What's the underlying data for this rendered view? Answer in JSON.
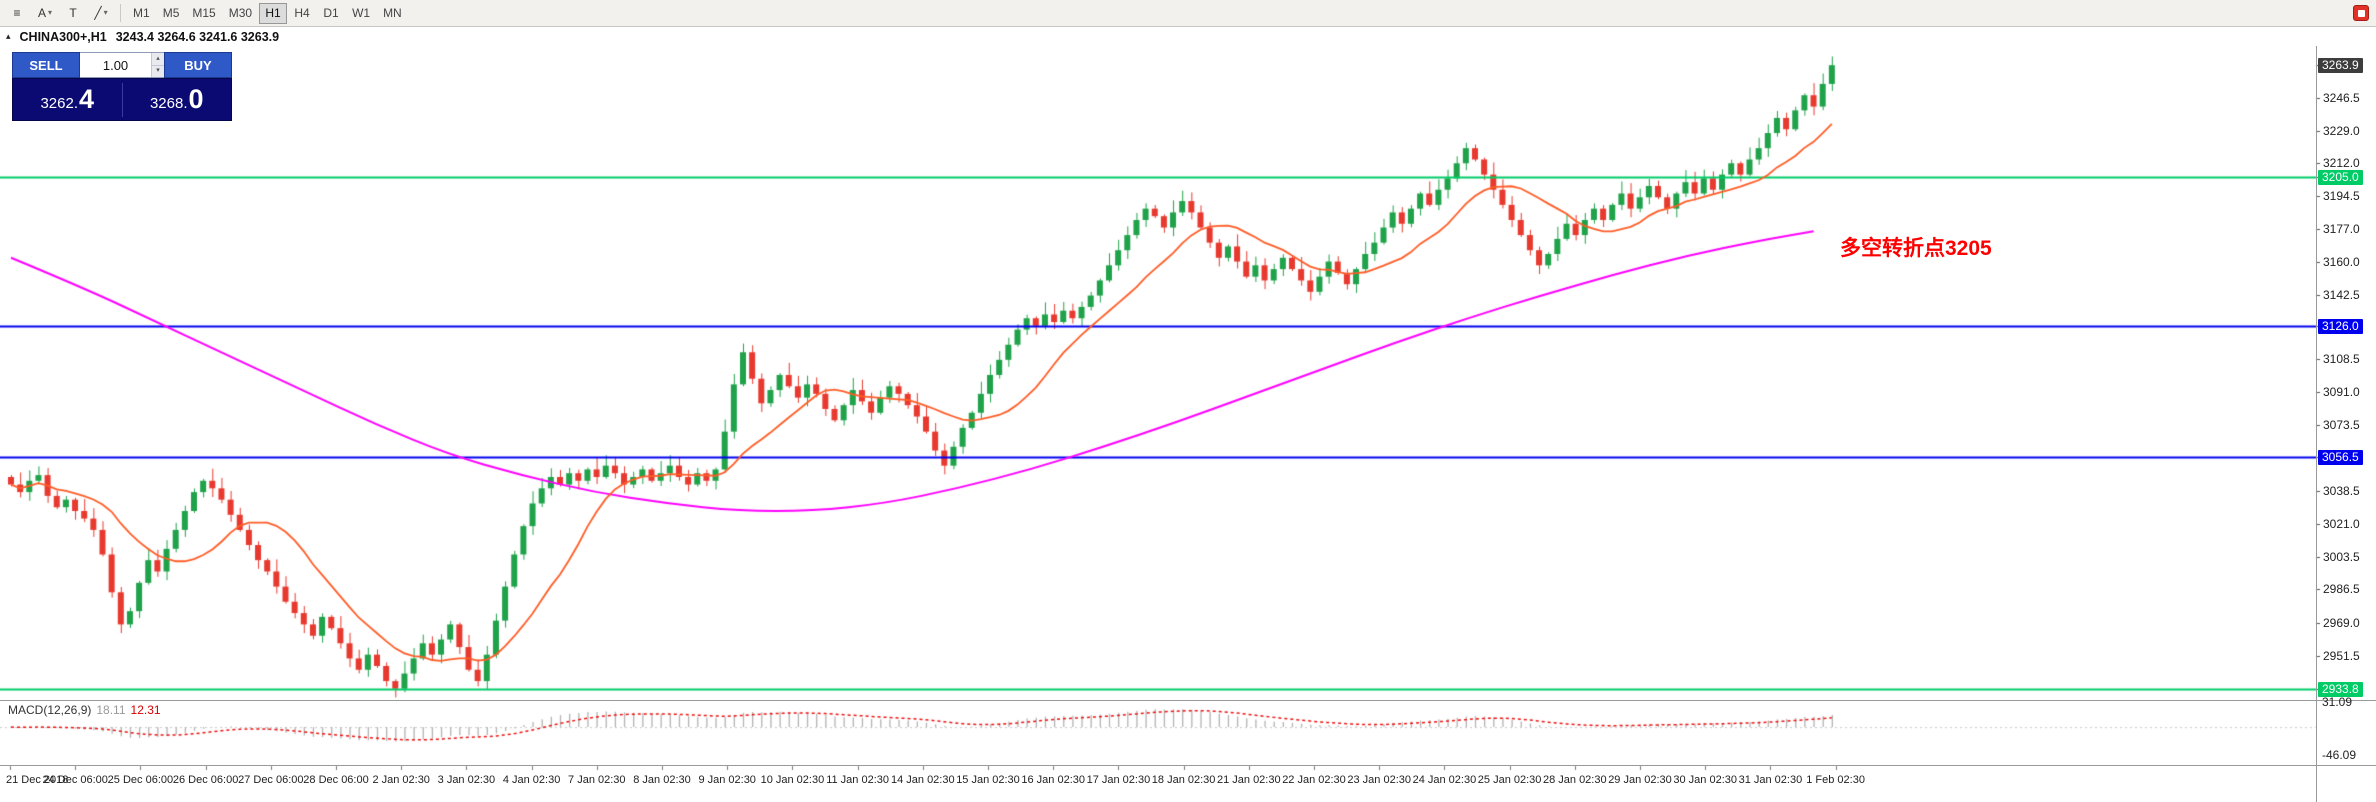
{
  "toolbar": {
    "menu_icon": "≡",
    "cursor_label": "A",
    "text_label": "T",
    "trend_icon": "╱",
    "caret": "▾",
    "timeframes": [
      {
        "label": "M1",
        "active": false
      },
      {
        "label": "M5",
        "active": false
      },
      {
        "label": "M15",
        "active": false
      },
      {
        "label": "M30",
        "active": false
      },
      {
        "label": "H1",
        "active": true
      },
      {
        "label": "H4",
        "active": false
      },
      {
        "label": "D1",
        "active": false
      },
      {
        "label": "W1",
        "active": false
      },
      {
        "label": "MN",
        "active": false
      }
    ]
  },
  "window": {
    "caret_icon": "▴"
  },
  "chart": {
    "title": "CHINA300+,H1",
    "ohlc_text": "3243.4 3264.6 3241.6 3263.9"
  },
  "trade_panel": {
    "sell_label": "SELL",
    "buy_label": "BUY",
    "lot": "1.00",
    "sell_price_small": "3262.",
    "sell_price_big": "4",
    "buy_price_small": "3268.",
    "buy_price_big": "0",
    "spin_up": "▴",
    "spin_down": "▾",
    "panel_color": "#0a0a72",
    "button_color": "#3059c8"
  },
  "annotation": {
    "text": "多空转折点3205",
    "color": "#ff0000"
  },
  "macd": {
    "label": "MACD(12,26,9)",
    "value_main": "18.11",
    "value_signal": "12.31",
    "scale_top": "31.09",
    "scale_bottom": "-46.09"
  },
  "chart_data": {
    "type": "candlestick",
    "symbol": "CHINA300+",
    "timeframe": "H1",
    "current_ohlc": {
      "open": 3243.4,
      "high": 3264.6,
      "low": 3241.6,
      "close": 3263.9
    },
    "price_axis": {
      "min": 2928,
      "max": 3273,
      "ticks": [
        3246.5,
        3229.0,
        3212.0,
        3194.5,
        3177.0,
        3160.0,
        3142.5,
        3108.5,
        3091.0,
        3073.5,
        3038.5,
        3021.0,
        3003.5,
        2986.5,
        2969.0,
        2951.5
      ],
      "current": {
        "price": 3263.9,
        "label": "3263.9",
        "bg": "#3d3d3d"
      }
    },
    "hlines": [
      {
        "price": 3205.0,
        "label": "3205.0",
        "color": "#00cc66"
      },
      {
        "price": 3126.0,
        "label": "3126.0",
        "color": "#0000ee"
      },
      {
        "price": 3056.5,
        "label": "3056.5",
        "color": "#0000ee"
      },
      {
        "price": 2933.8,
        "label": "2933.8",
        "color": "#00cc66"
      }
    ],
    "closes": [
      3042,
      3038,
      3044,
      3047,
      3036,
      3030,
      3034,
      3028,
      3024,
      3018,
      3005,
      2985,
      2968,
      2975,
      2990,
      3002,
      2996,
      3008,
      3018,
      3028,
      3038,
      3044,
      3040,
      3034,
      3026,
      3018,
      3010,
      3002,
      2996,
      2988,
      2980,
      2974,
      2968,
      2962,
      2972,
      2966,
      2958,
      2950,
      2944,
      2952,
      2946,
      2938,
      2934,
      2942,
      2950,
      2958,
      2952,
      2960,
      2968,
      2956,
      2944,
      2938,
      2952,
      2970,
      2988,
      3005,
      3020,
      3032,
      3040,
      3046,
      3042,
      3048,
      3044,
      3050,
      3046,
      3052,
      3048,
      3042,
      3046,
      3050,
      3044,
      3048,
      3052,
      3046,
      3042,
      3048,
      3044,
      3050,
      3070,
      3095,
      3112,
      3098,
      3085,
      3092,
      3100,
      3094,
      3088,
      3095,
      3090,
      3082,
      3076,
      3084,
      3092,
      3086,
      3080,
      3088,
      3094,
      3090,
      3084,
      3078,
      3070,
      3060,
      3052,
      3062,
      3072,
      3080,
      3090,
      3100,
      3108,
      3116,
      3124,
      3130,
      3126,
      3132,
      3128,
      3134,
      3130,
      3136,
      3142,
      3150,
      3158,
      3166,
      3174,
      3182,
      3188,
      3184,
      3178,
      3186,
      3192,
      3186,
      3178,
      3170,
      3162,
      3168,
      3160,
      3152,
      3158,
      3150,
      3156,
      3162,
      3156,
      3150,
      3144,
      3152,
      3160,
      3154,
      3148,
      3156,
      3164,
      3170,
      3178,
      3186,
      3180,
      3188,
      3196,
      3190,
      3198,
      3204,
      3212,
      3220,
      3214,
      3206,
      3198,
      3190,
      3182,
      3174,
      3166,
      3158,
      3164,
      3172,
      3180,
      3174,
      3182,
      3188,
      3182,
      3190,
      3196,
      3188,
      3194,
      3200,
      3194,
      3188,
      3196,
      3202,
      3196,
      3204,
      3198,
      3206,
      3212,
      3206,
      3214,
      3220,
      3228,
      3236,
      3230,
      3240,
      3248,
      3242,
      3254,
      3263.9
    ],
    "ma_slow_anchors": [
      [
        0,
        3162
      ],
      [
        0.04,
        3146
      ],
      [
        0.08,
        3128
      ],
      [
        0.12,
        3110
      ],
      [
        0.16,
        3092
      ],
      [
        0.2,
        3074
      ],
      [
        0.24,
        3058
      ],
      [
        0.28,
        3047
      ],
      [
        0.32,
        3038
      ],
      [
        0.36,
        3032
      ],
      [
        0.4,
        3028
      ],
      [
        0.44,
        3028
      ],
      [
        0.48,
        3032
      ],
      [
        0.52,
        3040
      ],
      [
        0.56,
        3050
      ],
      [
        0.6,
        3062
      ],
      [
        0.64,
        3075
      ],
      [
        0.68,
        3089
      ],
      [
        0.72,
        3103
      ],
      [
        0.76,
        3117
      ],
      [
        0.8,
        3130
      ],
      [
        0.84,
        3142
      ],
      [
        0.88,
        3153
      ],
      [
        0.92,
        3163
      ],
      [
        0.96,
        3171
      ],
      [
        0.99,
        3176
      ]
    ],
    "x_labels": [
      "21 Dec 2018",
      "24 Dec 06:00",
      "25 Dec 06:00",
      "26 Dec 06:00",
      "27 Dec 06:00",
      "28 Dec 06:00",
      "2 Jan 02:30",
      "3 Jan 02:30",
      "4 Jan 02:30",
      "7 Jan 02:30",
      "8 Jan 02:30",
      "9 Jan 02:30",
      "10 Jan 02:30",
      "11 Jan 02:30",
      "14 Jan 02:30",
      "15 Jan 02:30",
      "16 Jan 02:30",
      "17 Jan 02:30",
      "18 Jan 02:30",
      "21 Jan 02:30",
      "22 Jan 02:30",
      "23 Jan 02:30",
      "24 Jan 02:30",
      "25 Jan 02:30",
      "28 Jan 02:30",
      "29 Jan 02:30",
      "30 Jan 02:30",
      "31 Jan 02:30",
      "1 Feb 02:30"
    ],
    "macd_panel": {
      "scale_max": 35,
      "scale_min": -50
    },
    "colors": {
      "up": "#1fa24a",
      "down": "#e8392f",
      "ma_fast": "#ff5c26",
      "ma_slow": "#ff00ff",
      "histogram": "#b3b3b3",
      "signal": "#ee1111",
      "grid": "#e6e6e6"
    }
  }
}
